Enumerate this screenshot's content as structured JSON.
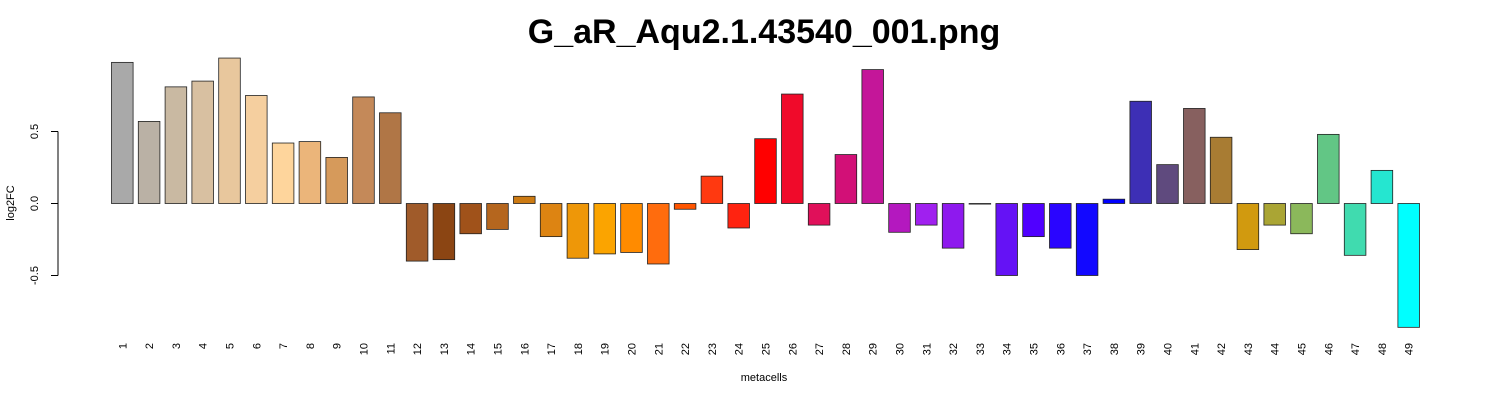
{
  "chart_data": {
    "type": "bar",
    "title": "G_aR_Aqu2.1.43540_001.png",
    "xlabel": "metacells",
    "ylabel": "log2FC",
    "ylim": [
      -0.88,
      1.02
    ],
    "yticks": [
      -0.5,
      0.0,
      0.5
    ],
    "ytick_labels": [
      "-0.5",
      "0.0",
      "0.5"
    ],
    "grid": false,
    "categories": [
      "1",
      "2",
      "3",
      "4",
      "5",
      "6",
      "7",
      "8",
      "9",
      "10",
      "11",
      "12",
      "13",
      "14",
      "15",
      "16",
      "17",
      "18",
      "19",
      "20",
      "21",
      "22",
      "23",
      "24",
      "25",
      "26",
      "27",
      "28",
      "29",
      "30",
      "31",
      "32",
      "33",
      "34",
      "35",
      "36",
      "37",
      "38",
      "39",
      "40",
      "41",
      "42",
      "43",
      "44",
      "45",
      "46",
      "47",
      "48",
      "49"
    ],
    "values": [
      0.98,
      0.57,
      0.81,
      0.85,
      1.01,
      0.75,
      0.42,
      0.43,
      0.32,
      0.74,
      0.63,
      -0.4,
      -0.39,
      -0.21,
      -0.18,
      0.05,
      -0.23,
      -0.38,
      -0.35,
      -0.34,
      -0.42,
      -0.04,
      0.19,
      -0.17,
      0.45,
      0.76,
      -0.15,
      0.34,
      0.93,
      -0.2,
      -0.15,
      -0.31,
      0.0,
      -0.5,
      -0.23,
      -0.31,
      -0.5,
      0.03,
      0.71,
      0.27,
      0.66,
      0.46,
      -0.32,
      -0.15,
      -0.21,
      0.48,
      -0.36,
      0.23,
      -0.86
    ],
    "colors": [
      "#a9a9a9",
      "#bab1a5",
      "#c9b9a2",
      "#d8c0a1",
      "#e8c79d",
      "#f5cf9f",
      "#fed59c",
      "#ebb57a",
      "#d69a5b",
      "#c48959",
      "#b07646",
      "#a05b2a",
      "#8b4513",
      "#a0521a",
      "#b5661e",
      "#cc7a12",
      "#dd8412",
      "#ee9708",
      "#fba400",
      "#ff8b00",
      "#ff6c0d",
      "#ff5500",
      "#ff3910",
      "#ff2310",
      "#ff0000",
      "#f00a2a",
      "#e0105a",
      "#d21077",
      "#c41699",
      "#b418bf",
      "#a020ef",
      "#8e19ee",
      "#801aef",
      "#6512f5",
      "#5000ff",
      "#2a05ff",
      "#1208ff",
      "#0000ff",
      "#3d2fb5",
      "#5f4a7e",
      "#87605f",
      "#a87c33",
      "#d19a0f",
      "#aaa534",
      "#8bb85b",
      "#62c685",
      "#40dbaf",
      "#25e6d0",
      "#00ffff"
    ]
  }
}
